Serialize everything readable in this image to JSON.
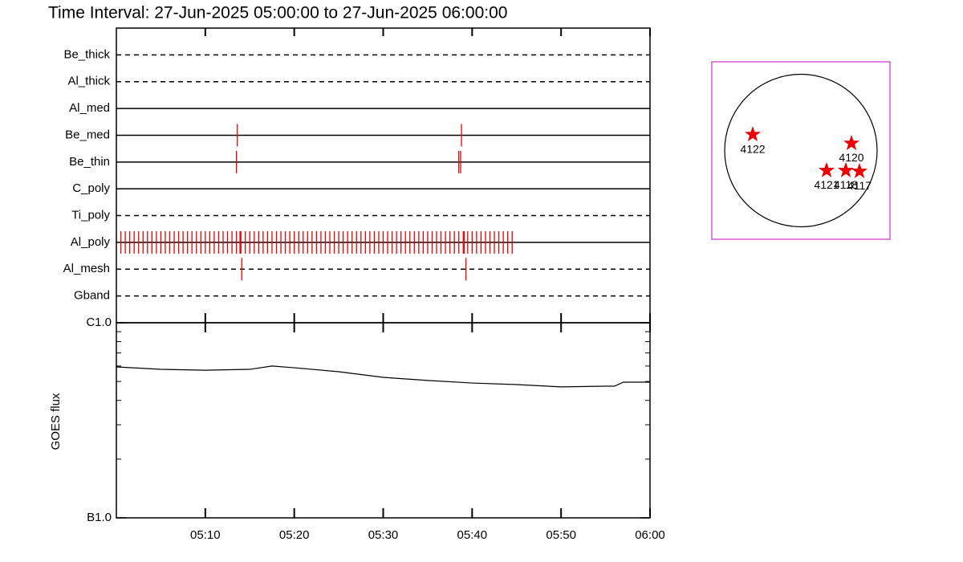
{
  "chart_data": [
    {
      "type": "timeline",
      "title": "Time Interval: 27-Jun-2025 05:00:00 to 27-Jun-2025 06:00:00",
      "color": "#ee0000",
      "xlim": [
        0,
        60
      ],
      "rows": [
        {
          "name": "Be_thick",
          "style": "dashed",
          "times": []
        },
        {
          "name": "Al_thick",
          "style": "dashed",
          "times": []
        },
        {
          "name": "Al_med",
          "style": "solid",
          "times": []
        },
        {
          "name": "Be_med",
          "style": "solid",
          "times": [
            13.6,
            38.8
          ]
        },
        {
          "name": "Be_thin",
          "style": "solid",
          "times": [
            13.5,
            38.5,
            38.7
          ]
        },
        {
          "name": "C_poly",
          "style": "solid",
          "times": []
        },
        {
          "name": "Ti_poly",
          "style": "dashed",
          "times": []
        },
        {
          "name": "Al_poly",
          "style": "solid",
          "times": [
            0.5,
            1,
            1.5,
            2,
            2.5,
            3,
            3.5,
            4,
            4.5,
            5,
            5.5,
            6,
            6.5,
            7,
            7.5,
            8,
            8.5,
            9,
            9.5,
            10,
            10.5,
            11,
            11.5,
            12,
            12.5,
            13,
            13.5,
            14,
            14.5,
            15,
            15.5,
            16,
            16.5,
            17,
            17.5,
            18,
            18.5,
            19,
            19.5,
            20,
            20.5,
            21,
            21.5,
            22,
            22.5,
            23,
            23.5,
            24,
            24.5,
            25,
            25.5,
            26,
            26.5,
            27,
            27.5,
            28,
            28.5,
            29,
            29.5,
            30,
            30.5,
            31,
            31.5,
            32,
            32.5,
            33,
            33.5,
            34,
            34.5,
            35,
            35.5,
            36,
            36.5,
            37,
            37.5,
            38,
            38.5,
            39,
            39.5,
            40,
            40.5,
            41,
            41.5,
            42,
            42.5,
            43,
            43.5,
            44,
            44.5,
            13.9,
            39.1
          ]
        },
        {
          "name": "Al_mesh",
          "style": "dashed",
          "times": [
            14.1,
            39.3
          ]
        },
        {
          "name": "Gband",
          "style": "dashed",
          "times": []
        }
      ]
    },
    {
      "type": "line",
      "y_label": "GOES flux",
      "log_y": true,
      "color": "#000000",
      "xlim": [
        0,
        60
      ],
      "xticks": [
        {
          "value": 10,
          "label": "05:10"
        },
        {
          "value": 20,
          "label": "05:20"
        },
        {
          "value": 30,
          "label": "05:30"
        },
        {
          "value": 40,
          "label": "05:40"
        },
        {
          "value": 50,
          "label": "05:50"
        },
        {
          "value": 60,
          "label": "06:00"
        }
      ],
      "ylim": [
        1e-07,
        1e-06
      ],
      "yticks": [
        {
          "value": 1e-07,
          "label": "B1.0"
        },
        {
          "value": 1e-06,
          "label": "C1.0"
        }
      ],
      "x": [
        0,
        5,
        10,
        15,
        17.5,
        20,
        25,
        30,
        35,
        40,
        45,
        50,
        55,
        56,
        57,
        60
      ],
      "values": [
        5.94e-07,
        5.77e-07,
        5.71e-07,
        5.77e-07,
        6e-07,
        5.88e-07,
        5.61e-07,
        5.25e-07,
        5.06e-07,
        4.91e-07,
        4.82e-07,
        4.69e-07,
        4.73e-07,
        4.73e-07,
        4.96e-07,
        4.96e-07
      ]
    },
    {
      "type": "scatter",
      "color": "#ee0000",
      "border_color": "#cc33cc",
      "xlim": [
        -1110,
        1110
      ],
      "ylim": [
        -1110,
        1110
      ],
      "radius": 950,
      "labels": [
        "4122",
        "4120",
        "4121",
        "4118",
        "4117"
      ],
      "x": [
        -600,
        630,
        320,
        560,
        730
      ],
      "values": [
        200,
        90,
        -250,
        -250,
        -260
      ]
    }
  ]
}
